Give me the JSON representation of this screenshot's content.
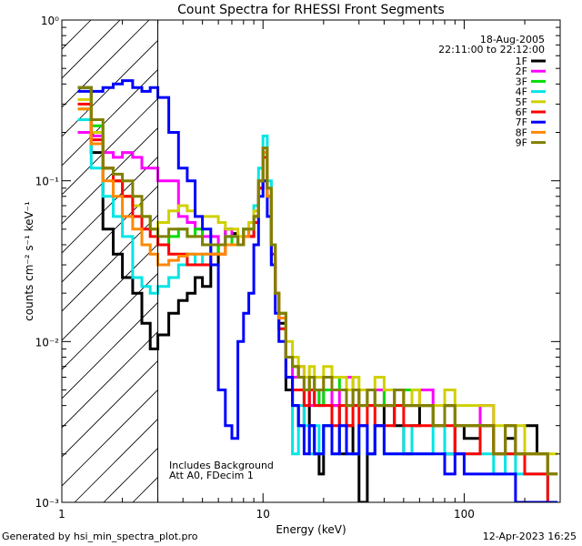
{
  "chart_data": {
    "type": "line",
    "title": "Count Spectra for RHESSI Front Segments",
    "xlabel": "Energy (keV)",
    "ylabel": "counts cm⁻² s⁻¹ keV⁻¹",
    "xscale": "log",
    "yscale": "log",
    "xlim": [
      1,
      300
    ],
    "ylim": [
      0.001,
      1.0
    ],
    "x_tick_labels": [
      "1",
      "10",
      "100"
    ],
    "y_tick_labels": [
      "10⁻³",
      "10⁻²",
      "10⁻¹",
      "10⁰"
    ],
    "hatched_region_xmax": 3,
    "date": "18-Aug-2005",
    "time_range": "22:11:00 to 22:12:00",
    "annotations": [
      "Includes Background",
      "Att A0, FDecim 1"
    ],
    "legend_position": "top-right",
    "x": [
      1.2,
      1.4,
      1.6,
      1.8,
      2.0,
      2.25,
      2.5,
      2.75,
      3.0,
      3.4,
      3.8,
      4.2,
      4.6,
      5.0,
      5.5,
      6.0,
      6.5,
      7.0,
      7.5,
      8.0,
      8.5,
      9.0,
      9.5,
      10.0,
      10.5,
      11.0,
      11.5,
      12.0,
      13,
      14,
      15,
      16,
      17,
      18,
      19,
      20,
      22,
      24,
      26,
      28,
      30,
      33,
      36,
      40,
      45,
      50,
      55,
      60,
      70,
      80,
      90,
      100,
      120,
      140,
      160,
      180,
      200,
      230,
      260
    ],
    "series": [
      {
        "name": "1F",
        "color": "#000000",
        "values": [
          0.38,
          0.15,
          0.05,
          0.035,
          0.025,
          0.02,
          0.013,
          0.009,
          0.011,
          0.015,
          0.018,
          0.02,
          0.025,
          0.022,
          0.03,
          0.04,
          0.05,
          0.047,
          0.04,
          0.05,
          0.045,
          0.06,
          0.09,
          0.15,
          0.08,
          0.03,
          0.02,
          0.013,
          0.005,
          0.004,
          0.003,
          0.005,
          0.003,
          0.002,
          0.0015,
          0.003,
          0.004,
          0.002,
          0.003,
          0.002,
          0.001,
          0.002,
          0.003,
          0.004,
          0.003,
          0.002,
          0.003,
          0.004,
          0.003,
          0.002,
          0.003,
          0.0025,
          0.003,
          0.002,
          0.0025,
          0.002,
          0.003,
          0.002,
          0.0015
        ]
      },
      {
        "name": "2F",
        "color": "#ff00ff",
        "values": [
          0.2,
          0.19,
          0.15,
          0.14,
          0.15,
          0.14,
          0.12,
          0.12,
          0.1,
          0.1,
          0.06,
          0.055,
          0.05,
          0.045,
          0.045,
          0.04,
          0.05,
          0.045,
          0.04,
          0.05,
          0.05,
          0.06,
          0.1,
          0.16,
          0.09,
          0.04,
          0.02,
          0.015,
          0.008,
          0.006,
          0.007,
          0.005,
          0.004,
          0.005,
          0.004,
          0.005,
          0.004,
          0.005,
          0.006,
          0.004,
          0.005,
          0.004,
          0.005,
          0.004,
          0.005,
          0.004,
          0.004,
          0.005,
          0.003,
          0.004,
          0.003,
          0.003,
          0.004,
          0.002,
          0.003,
          0.002,
          0.002,
          0.002,
          0.0015
        ]
      },
      {
        "name": "3F",
        "color": "#00dd00",
        "values": [
          0.28,
          0.22,
          0.12,
          0.1,
          0.08,
          0.07,
          0.06,
          0.05,
          0.04,
          0.045,
          0.05,
          0.045,
          0.05,
          0.04,
          0.035,
          0.04,
          0.04,
          0.045,
          0.04,
          0.05,
          0.05,
          0.06,
          0.1,
          0.15,
          0.08,
          0.04,
          0.02,
          0.015,
          0.008,
          0.007,
          0.006,
          0.005,
          0.006,
          0.005,
          0.004,
          0.005,
          0.006,
          0.005,
          0.004,
          0.005,
          0.004,
          0.005,
          0.004,
          0.005,
          0.004,
          0.005,
          0.004,
          0.004,
          0.003,
          0.004,
          0.003,
          0.003,
          0.003,
          0.002,
          0.003,
          0.002,
          0.002,
          0.002,
          0.0015
        ]
      },
      {
        "name": "4F",
        "color": "#00e5e5",
        "values": [
          0.24,
          0.12,
          0.08,
          0.06,
          0.045,
          0.025,
          0.022,
          0.02,
          0.022,
          0.025,
          0.03,
          0.035,
          0.03,
          0.035,
          0.04,
          0.04,
          0.045,
          0.045,
          0.04,
          0.05,
          0.05,
          0.07,
          0.12,
          0.19,
          0.1,
          0.04,
          0.02,
          0.012,
          0.006,
          0.002,
          0.004,
          0.003,
          0.002,
          0.003,
          0.002,
          0.003,
          0.002,
          0.003,
          0.002,
          0.002,
          0.003,
          0.002,
          0.003,
          0.002,
          0.002,
          0.003,
          0.002,
          0.002,
          0.003,
          0.002,
          0.002,
          0.002,
          0.002,
          0.0015,
          0.002,
          0.0015,
          0.0015,
          0.0015,
          0.001
        ]
      },
      {
        "name": "5F",
        "color": "#d0d000",
        "values": [
          0.32,
          0.2,
          0.12,
          0.1,
          0.08,
          0.07,
          0.06,
          0.05,
          0.055,
          0.065,
          0.07,
          0.065,
          0.06,
          0.06,
          0.06,
          0.055,
          0.05,
          0.05,
          0.045,
          0.05,
          0.055,
          0.065,
          0.1,
          0.16,
          0.09,
          0.04,
          0.02,
          0.015,
          0.01,
          0.008,
          0.007,
          0.006,
          0.007,
          0.006,
          0.006,
          0.007,
          0.006,
          0.006,
          0.005,
          0.006,
          0.005,
          0.005,
          0.006,
          0.005,
          0.005,
          0.004,
          0.005,
          0.004,
          0.004,
          0.005,
          0.004,
          0.004,
          0.004,
          0.003,
          0.003,
          0.003,
          0.002,
          0.002,
          0.002
        ]
      },
      {
        "name": "6F",
        "color": "#ff0000",
        "values": [
          0.3,
          0.18,
          0.12,
          0.1,
          0.08,
          0.06,
          0.05,
          0.045,
          0.04,
          0.035,
          0.035,
          0.03,
          0.03,
          0.03,
          0.035,
          0.035,
          0.04,
          0.04,
          0.04,
          0.045,
          0.045,
          0.055,
          0.09,
          0.14,
          0.08,
          0.035,
          0.02,
          0.012,
          0.006,
          0.005,
          0.005,
          0.004,
          0.005,
          0.004,
          0.004,
          0.004,
          0.003,
          0.004,
          0.003,
          0.004,
          0.003,
          0.004,
          0.003,
          0.003,
          0.004,
          0.003,
          0.003,
          0.003,
          0.003,
          0.003,
          0.002,
          0.002,
          0.003,
          0.002,
          0.002,
          0.002,
          0.0015,
          0.0015,
          0.001
        ]
      },
      {
        "name": "7F",
        "color": "#0000ff",
        "values": [
          0.36,
          0.36,
          0.38,
          0.4,
          0.42,
          0.38,
          0.36,
          0.38,
          0.33,
          0.2,
          0.12,
          0.1,
          0.06,
          0.05,
          0.03,
          0.005,
          0.003,
          0.0025,
          0.01,
          0.015,
          0.02,
          0.04,
          0.08,
          0.1,
          0.06,
          0.03,
          0.015,
          0.01,
          0.006,
          0.004,
          0.003,
          0.002,
          0.003,
          0.002,
          0.002,
          0.003,
          0.002,
          0.003,
          0.002,
          0.002,
          0.003,
          0.002,
          0.003,
          0.002,
          0.002,
          0.002,
          0.002,
          0.002,
          0.002,
          0.0015,
          0.002,
          0.0015,
          0.0015,
          0.0015,
          0.0015,
          0.001,
          0.001,
          0.001,
          0.001
        ]
      },
      {
        "name": "8F",
        "color": "#ff8800",
        "values": [
          0.28,
          0.17,
          0.1,
          0.08,
          0.06,
          0.05,
          0.04,
          0.035,
          0.03,
          0.032,
          0.034,
          0.035,
          0.035,
          0.035,
          0.035,
          0.035,
          0.04,
          0.04,
          0.04,
          0.045,
          0.05,
          0.06,
          0.1,
          0.15,
          0.08,
          0.04,
          0.02,
          0.014,
          0.008,
          0.007,
          0.006,
          0.005,
          0.006,
          0.005,
          0.005,
          0.006,
          0.005,
          0.005,
          0.004,
          0.005,
          0.004,
          0.005,
          0.004,
          0.004,
          0.005,
          0.004,
          0.004,
          0.004,
          0.003,
          0.004,
          0.003,
          0.003,
          0.003,
          0.002,
          0.003,
          0.002,
          0.002,
          0.002,
          0.0015
        ]
      },
      {
        "name": "9F",
        "color": "#808000",
        "values": [
          0.38,
          0.24,
          0.12,
          0.11,
          0.1,
          0.08,
          0.06,
          0.05,
          0.045,
          0.05,
          0.05,
          0.045,
          0.045,
          0.04,
          0.04,
          0.04,
          0.045,
          0.045,
          0.04,
          0.05,
          0.05,
          0.06,
          0.1,
          0.16,
          0.09,
          0.04,
          0.02,
          0.015,
          0.008,
          0.007,
          0.006,
          0.005,
          0.006,
          0.005,
          0.005,
          0.006,
          0.005,
          0.005,
          0.004,
          0.005,
          0.004,
          0.005,
          0.004,
          0.004,
          0.005,
          0.004,
          0.004,
          0.004,
          0.003,
          0.004,
          0.003,
          0.003,
          0.003,
          0.002,
          0.003,
          0.002,
          0.002,
          0.002,
          0.0015
        ]
      }
    ]
  },
  "footer": {
    "generator": "Generated by hsi_min_spectra_plot.pro",
    "timestamp": "12-Apr-2023 16:25"
  }
}
